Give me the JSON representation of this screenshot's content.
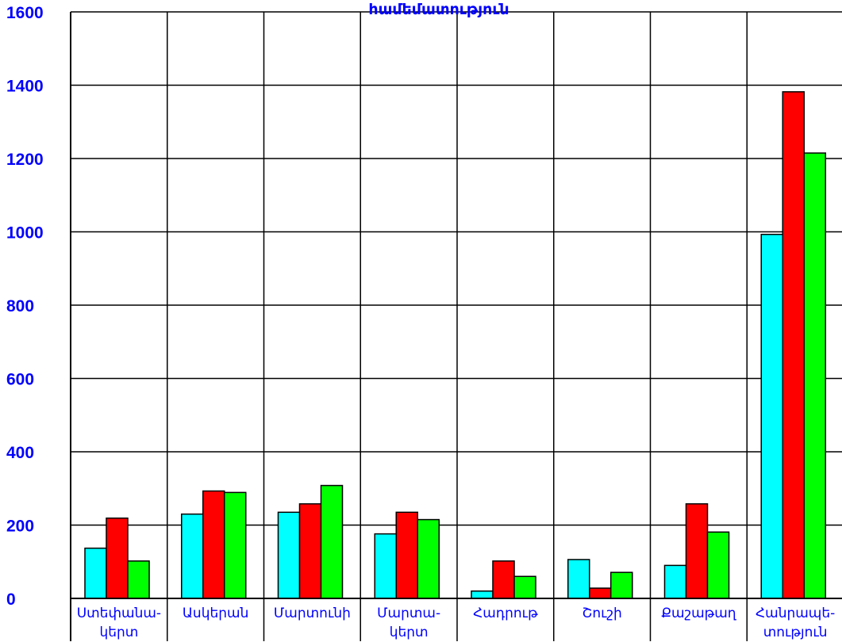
{
  "chart_data": {
    "type": "bar",
    "title": "համեմատություն",
    "categories": [
      [
        "Ստեփանա-",
        "կերտ"
      ],
      [
        "Ասկերան"
      ],
      [
        "Մարտունի"
      ],
      [
        "Մարտա-",
        "կերտ"
      ],
      [
        "Հադրութ"
      ],
      [
        "Շուշի"
      ],
      [
        "Քաշաթաղ"
      ],
      [
        "Հանրապե-",
        "տություն"
      ]
    ],
    "series": [
      {
        "values": [
          137,
          230,
          235,
          176,
          20,
          106,
          90,
          993
        ],
        "color": "#00ffff"
      },
      {
        "values": [
          219,
          293,
          258,
          235,
          102,
          28,
          258,
          1382
        ],
        "color": "#ff0000"
      },
      {
        "values": [
          102,
          289,
          308,
          215,
          60,
          71,
          181,
          1215
        ],
        "color": "#00ff00"
      }
    ],
    "ylim": [
      0,
      1600
    ],
    "yticks": [
      0,
      200,
      400,
      600,
      800,
      1000,
      1200,
      1400,
      1600
    ],
    "grid": true
  }
}
